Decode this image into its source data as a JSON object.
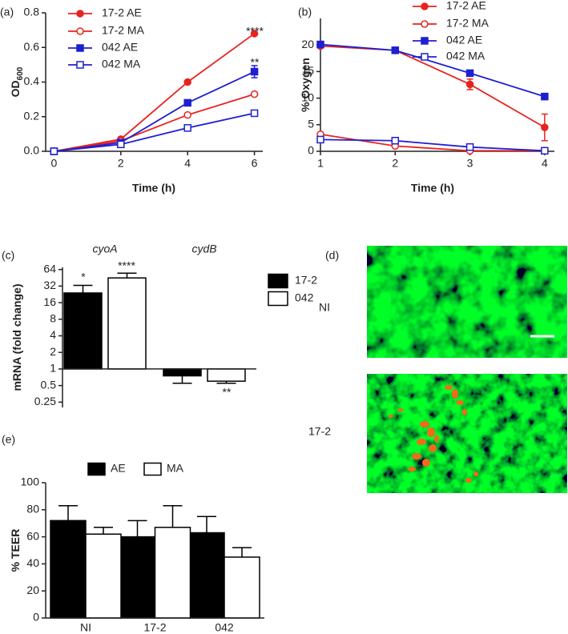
{
  "chart_data": [
    {
      "type": "line",
      "panel": "(a)",
      "xlabel": "Time (h)",
      "ylabel": "OD",
      "ylabel_sub": "600",
      "x": [
        0,
        2,
        4,
        6
      ],
      "xlim": [
        -0.25,
        6.25
      ],
      "xticks": [
        0,
        2,
        4,
        6
      ],
      "ylim": [
        0,
        0.8
      ],
      "yticks": [
        {
          "value": 0,
          "label": "0.0"
        },
        0.2,
        0.4,
        0.6,
        0.8
      ],
      "series": [
        {
          "name": "17-2 AE",
          "color": "#e8231e",
          "marker": "circle",
          "filled": true,
          "values": [
            0,
            0.07,
            0.4,
            0.68
          ]
        },
        {
          "name": "17-2 MA",
          "color": "#e8231e",
          "marker": "circle",
          "filled": false,
          "values": [
            0,
            0.06,
            0.21,
            0.33
          ]
        },
        {
          "name": "042 AE",
          "color": "#1f1fd1",
          "marker": "square",
          "filled": true,
          "values": [
            0,
            0.05,
            0.28,
            0.46
          ],
          "errors": [
            null,
            null,
            null,
            0.035
          ]
        },
        {
          "name": "042 MA",
          "color": "#1f1fd1",
          "marker": "square",
          "filled": false,
          "values": [
            0,
            0.04,
            0.135,
            0.22
          ]
        }
      ],
      "annotations": [
        "****",
        "**"
      ]
    },
    {
      "type": "line",
      "panel": "(b)",
      "xlabel": "Time (h)",
      "ylabel": "% Oxygen",
      "x": [
        1,
        2,
        3,
        4
      ],
      "xlim": [
        1,
        4.13
      ],
      "xticks": [
        1,
        2,
        3,
        4
      ],
      "ylim": [
        0,
        25
      ],
      "yticks": [
        0,
        5,
        10,
        15,
        20
      ],
      "series": [
        {
          "name": "17-2 AE",
          "color": "#e8231e",
          "marker": "circle",
          "filled": true,
          "values": [
            19.8,
            19,
            12.6,
            4.5
          ],
          "errors": [
            null,
            null,
            1,
            2.5
          ]
        },
        {
          "name": "17-2 MA",
          "color": "#e8231e",
          "marker": "circle",
          "filled": false,
          "values": [
            3.2,
            1,
            0.1,
            0.1
          ]
        },
        {
          "name": "042 AE",
          "color": "#1f1fd1",
          "marker": "square",
          "filled": true,
          "values": [
            20.1,
            19,
            14.7,
            10.3
          ]
        },
        {
          "name": "042 MA",
          "color": "#1f1fd1",
          "marker": "square",
          "filled": false,
          "values": [
            2.2,
            2,
            0.8,
            0.1
          ]
        }
      ]
    },
    {
      "type": "bar",
      "panel": "(c)",
      "ylabel": "mRNA (fold change)",
      "log": true,
      "categories": [
        "cyoA",
        "cydB"
      ],
      "ylim": [
        0.2,
        70
      ],
      "yticks": [
        0.25,
        0.5,
        1,
        2,
        4,
        8,
        16,
        32,
        64
      ],
      "series": [
        {
          "name": "17-2",
          "color": "#000000",
          "values": [
            24,
            0.75
          ],
          "errors": [
            9,
            0.2
          ]
        },
        {
          "name": "042",
          "color": "#ffffff",
          "values": [
            45,
            0.6
          ],
          "errors": [
            10,
            0.05
          ]
        }
      ],
      "annotations": [
        "*",
        "****",
        "**"
      ]
    },
    {
      "type": "image",
      "panel": "(d)",
      "images": [
        "NI",
        "17-2"
      ]
    },
    {
      "type": "bar",
      "panel": "(e)",
      "ylabel": "% TEER",
      "categories": [
        "NI",
        "17-2",
        "042"
      ],
      "ylim": [
        0,
        100
      ],
      "yticks": [
        0,
        20,
        40,
        60,
        80,
        100
      ],
      "series": [
        {
          "name": "AE",
          "color": "#000000",
          "values": [
            72,
            60,
            63
          ],
          "errors": [
            11,
            12,
            12
          ]
        },
        {
          "name": "MA",
          "color": "#ffffff",
          "values": [
            62,
            67,
            45
          ],
          "errors": [
            5,
            16,
            7
          ]
        }
      ]
    }
  ]
}
